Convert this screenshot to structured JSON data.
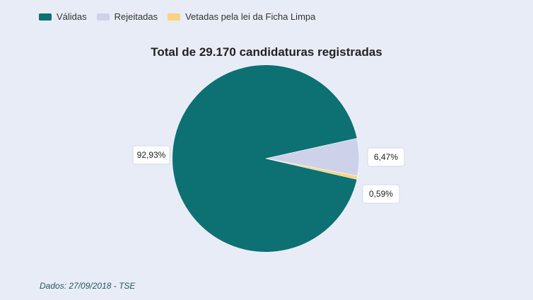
{
  "chart_data": {
    "type": "pie",
    "title": "Total de 29.170 candidaturas registradas",
    "categories": [
      "Válidas",
      "Rejeitadas",
      "Vetadas pela lei da Ficha Limpa"
    ],
    "values": [
      92.93,
      6.47,
      0.59
    ],
    "value_labels": [
      "92,93%",
      "6,47%",
      "0,59%"
    ],
    "colors": [
      "#0d7073",
      "#cdd1ea",
      "#f9d37f"
    ],
    "legend_position": "top-left"
  },
  "source": "Dados: 27/09/2018 - TSE"
}
